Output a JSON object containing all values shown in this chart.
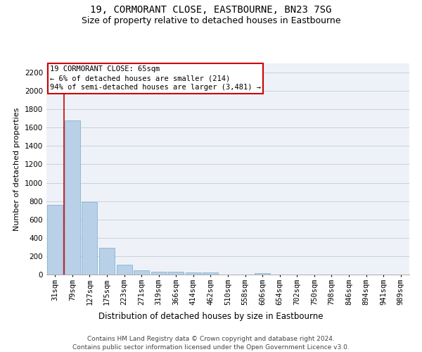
{
  "title1": "19, CORMORANT CLOSE, EASTBOURNE, BN23 7SG",
  "title2": "Size of property relative to detached houses in Eastbourne",
  "xlabel": "Distribution of detached houses by size in Eastbourne",
  "ylabel": "Number of detached properties",
  "categories": [
    "31sqm",
    "79sqm",
    "127sqm",
    "175sqm",
    "223sqm",
    "271sqm",
    "319sqm",
    "366sqm",
    "414sqm",
    "462sqm",
    "510sqm",
    "558sqm",
    "606sqm",
    "654sqm",
    "702sqm",
    "750sqm",
    "798sqm",
    "846sqm",
    "894sqm",
    "941sqm",
    "989sqm"
  ],
  "values": [
    760,
    1680,
    790,
    295,
    110,
    45,
    32,
    27,
    25,
    20,
    0,
    0,
    18,
    0,
    0,
    0,
    0,
    0,
    0,
    0,
    0
  ],
  "bar_color": "#b8d0e8",
  "bar_edge_color": "#7aaac8",
  "vline_color": "#cc0000",
  "annotation_box_text": "19 CORMORANT CLOSE: 65sqm\n← 6% of detached houses are smaller (214)\n94% of semi-detached houses are larger (3,481) →",
  "annotation_box_color": "#cc0000",
  "ylim": [
    0,
    2300
  ],
  "yticks": [
    0,
    200,
    400,
    600,
    800,
    1000,
    1200,
    1400,
    1600,
    1800,
    2000,
    2200
  ],
  "grid_color": "#c8d0dc",
  "bg_color": "#eef2f8",
  "footer": "Contains HM Land Registry data © Crown copyright and database right 2024.\nContains public sector information licensed under the Open Government Licence v3.0.",
  "title1_fontsize": 10,
  "title2_fontsize": 9,
  "xlabel_fontsize": 8.5,
  "ylabel_fontsize": 8,
  "tick_fontsize": 7.5,
  "annotation_fontsize": 7.5,
  "footer_fontsize": 6.5
}
